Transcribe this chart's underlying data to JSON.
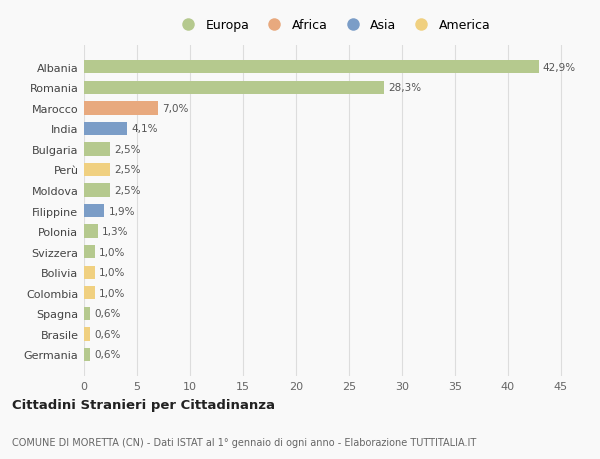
{
  "countries": [
    "Albania",
    "Romania",
    "Marocco",
    "India",
    "Bulgaria",
    "Perù",
    "Moldova",
    "Filippine",
    "Polonia",
    "Svizzera",
    "Bolivia",
    "Colombia",
    "Spagna",
    "Brasile",
    "Germania"
  ],
  "values": [
    42.9,
    28.3,
    7.0,
    4.1,
    2.5,
    2.5,
    2.5,
    1.9,
    1.3,
    1.0,
    1.0,
    1.0,
    0.6,
    0.6,
    0.6
  ],
  "labels": [
    "42,9%",
    "28,3%",
    "7,0%",
    "4,1%",
    "2,5%",
    "2,5%",
    "2,5%",
    "1,9%",
    "1,3%",
    "1,0%",
    "1,0%",
    "1,0%",
    "0,6%",
    "0,6%",
    "0,6%"
  ],
  "colors": [
    "#b5c98e",
    "#b5c98e",
    "#e8a97e",
    "#7b9dc7",
    "#b5c98e",
    "#f0d080",
    "#b5c98e",
    "#7b9dc7",
    "#b5c98e",
    "#b5c98e",
    "#f0d080",
    "#f0d080",
    "#b5c98e",
    "#f0d080",
    "#b5c98e"
  ],
  "legend_labels": [
    "Europa",
    "Africa",
    "Asia",
    "America"
  ],
  "legend_colors": [
    "#b5c98e",
    "#e8a97e",
    "#7b9dc7",
    "#f0d080"
  ],
  "title": "Cittadini Stranieri per Cittadinanza",
  "subtitle": "COMUNE DI MORETTA (CN) - Dati ISTAT al 1° gennaio di ogni anno - Elaborazione TUTTITALIA.IT",
  "xlim": [
    0,
    47
  ],
  "xticks": [
    0,
    5,
    10,
    15,
    20,
    25,
    30,
    35,
    40,
    45
  ],
  "bg_color": "#f9f9f9",
  "grid_color": "#dddddd",
  "bar_height": 0.65
}
